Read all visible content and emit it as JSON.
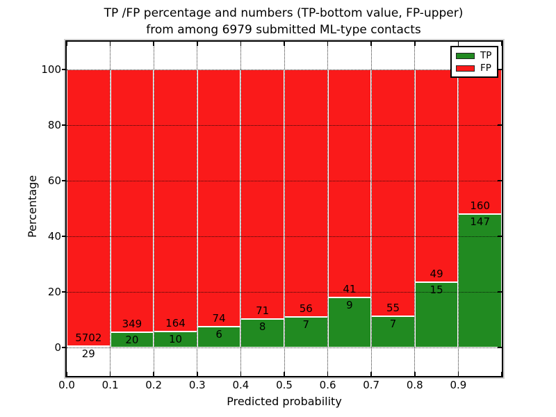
{
  "figure": {
    "title_line1": "TP /FP percentage and numbers (TP-bottom value, FP-upper)",
    "title_line2": "from among 6979 submitted ML-type contacts",
    "ylabel": "Percentage",
    "xlabel": "Predicted probability"
  },
  "legend": {
    "items": [
      {
        "label": "TP",
        "color": "#218a21"
      },
      {
        "label": "FP",
        "color": "#fa1a1a"
      }
    ]
  },
  "chart_data": {
    "type": "bar",
    "stacked": true,
    "normalized_to_percent": 100,
    "title": "TP /FP percentage and numbers (TP-bottom value, FP-upper) from among 6979 submitted ML-type contacts",
    "xlabel": "Predicted probability",
    "ylabel": "Percentage",
    "total_contacts": 6979,
    "bin_edges": [
      0.0,
      0.1,
      0.2,
      0.3,
      0.4,
      0.5,
      0.6,
      0.7,
      0.8,
      0.9,
      1.0
    ],
    "xticklabels": [
      "0.0",
      "0.1",
      "0.2",
      "0.3",
      "0.4",
      "0.5",
      "0.6",
      "0.7",
      "0.8",
      "0.9"
    ],
    "yticks": [
      0,
      20,
      40,
      60,
      80,
      100
    ],
    "xlim": [
      0.0,
      1.0
    ],
    "ylim": [
      -10.25,
      110
    ],
    "grid": "dotted",
    "legend_position": "upper right",
    "series": [
      {
        "name": "TP",
        "color": "#218a21",
        "counts": [
          29,
          20,
          10,
          6,
          8,
          7,
          9,
          7,
          15,
          147
        ],
        "pct": [
          0.51,
          5.42,
          5.75,
          7.5,
          10.13,
          11.11,
          18.0,
          11.29,
          23.44,
          47.88
        ]
      },
      {
        "name": "FP",
        "color": "#fa1a1a",
        "counts": [
          5702,
          349,
          164,
          74,
          71,
          56,
          41,
          55,
          49,
          160
        ],
        "pct": [
          99.49,
          94.58,
          94.25,
          92.5,
          89.87,
          88.89,
          82.0,
          88.71,
          76.56,
          52.12
        ]
      }
    ]
  }
}
